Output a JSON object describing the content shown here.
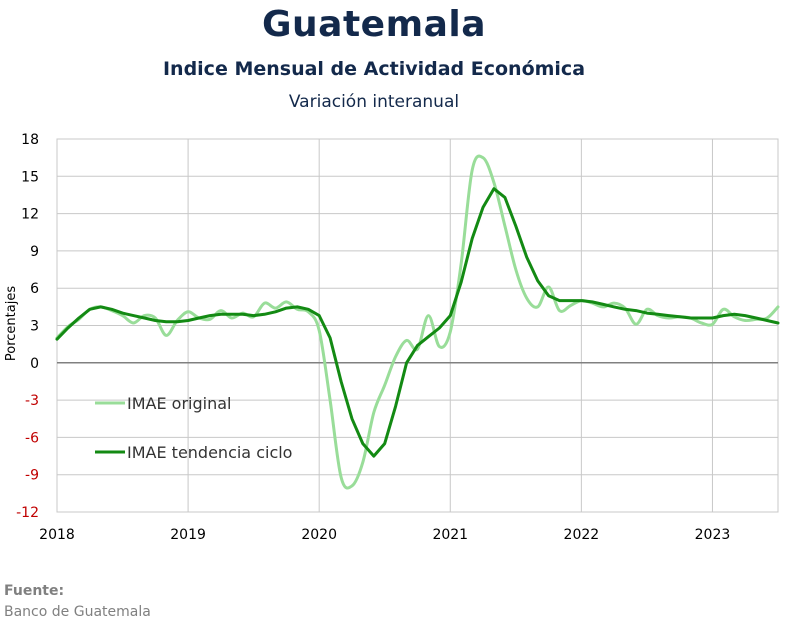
{
  "header": {
    "title": "Guatemala",
    "subtitle": "Indice Mensual de  Actividad Económica",
    "subtitle2": "Variación interanual"
  },
  "source": {
    "label": "Fuente:",
    "value": "Banco de Guatemala"
  },
  "colors": {
    "original": "#99dd99",
    "trend": "#138a13",
    "grid": "#c8c8c8",
    "zero_line": "#808080",
    "negative_tick": "#c00000",
    "text": "#000000"
  },
  "chart_data": {
    "type": "line",
    "ylabel": "Porcentajes",
    "ylim": [
      -12,
      18
    ],
    "yticks": [
      18,
      15,
      12,
      9,
      6,
      3,
      0,
      -3,
      -6,
      -9,
      -12
    ],
    "xlim": [
      2018,
      2023.5
    ],
    "xticks": [
      2018,
      2019,
      2020,
      2021,
      2022,
      2023
    ],
    "grid": true,
    "legend": "inside-bottom-left",
    "series": [
      {
        "name": "IMAE original",
        "x": [
          2018.0,
          2018.083,
          2018.167,
          2018.25,
          2018.333,
          2018.417,
          2018.5,
          2018.583,
          2018.667,
          2018.75,
          2018.833,
          2018.917,
          2019.0,
          2019.083,
          2019.167,
          2019.25,
          2019.333,
          2019.417,
          2019.5,
          2019.583,
          2019.667,
          2019.75,
          2019.833,
          2019.917,
          2020.0,
          2020.083,
          2020.167,
          2020.25,
          2020.333,
          2020.417,
          2020.5,
          2020.583,
          2020.667,
          2020.75,
          2020.833,
          2020.917,
          2021.0,
          2021.083,
          2021.167,
          2021.25,
          2021.333,
          2021.417,
          2021.5,
          2021.583,
          2021.667,
          2021.75,
          2021.833,
          2021.917,
          2022.0,
          2022.083,
          2022.167,
          2022.25,
          2022.333,
          2022.417,
          2022.5,
          2022.583,
          2022.667,
          2022.75,
          2022.833,
          2022.917,
          2023.0,
          2023.083,
          2023.167,
          2023.25,
          2023.333,
          2023.417,
          2023.5
        ],
        "values": [
          2.0,
          2.9,
          3.5,
          4.3,
          4.5,
          4.2,
          3.8,
          3.2,
          3.8,
          3.6,
          2.2,
          3.4,
          4.1,
          3.6,
          3.5,
          4.2,
          3.6,
          4.0,
          3.7,
          4.8,
          4.4,
          4.9,
          4.3,
          4.1,
          2.6,
          -3.0,
          -9.2,
          -9.9,
          -8.0,
          -4.0,
          -1.8,
          0.5,
          1.8,
          1.1,
          3.8,
          1.3,
          2.5,
          8.0,
          15.5,
          16.5,
          14.5,
          11.0,
          7.5,
          5.2,
          4.5,
          6.1,
          4.2,
          4.6,
          5.0,
          4.8,
          4.5,
          4.8,
          4.4,
          3.1,
          4.3,
          3.8,
          3.6,
          3.7,
          3.6,
          3.2,
          3.1,
          4.3,
          3.7,
          3.4,
          3.5,
          3.6,
          4.5
        ]
      },
      {
        "name": "IMAE tendencia ciclo",
        "x": [
          2018.0,
          2018.083,
          2018.167,
          2018.25,
          2018.333,
          2018.417,
          2018.5,
          2018.583,
          2018.667,
          2018.75,
          2018.833,
          2018.917,
          2019.0,
          2019.083,
          2019.167,
          2019.25,
          2019.333,
          2019.417,
          2019.5,
          2019.583,
          2019.667,
          2019.75,
          2019.833,
          2019.917,
          2020.0,
          2020.083,
          2020.167,
          2020.25,
          2020.333,
          2020.417,
          2020.5,
          2020.583,
          2020.667,
          2020.75,
          2020.833,
          2020.917,
          2021.0,
          2021.083,
          2021.167,
          2021.25,
          2021.333,
          2021.417,
          2021.5,
          2021.583,
          2021.667,
          2021.75,
          2021.833,
          2021.917,
          2022.0,
          2022.083,
          2022.167,
          2022.25,
          2022.333,
          2022.417,
          2022.5,
          2022.583,
          2022.667,
          2022.75,
          2022.833,
          2022.917,
          2023.0,
          2023.083,
          2023.167,
          2023.25,
          2023.333,
          2023.417,
          2023.5
        ],
        "values": [
          1.9,
          2.8,
          3.6,
          4.3,
          4.5,
          4.3,
          4.0,
          3.8,
          3.6,
          3.4,
          3.3,
          3.3,
          3.4,
          3.6,
          3.8,
          3.9,
          3.9,
          3.9,
          3.8,
          3.9,
          4.1,
          4.4,
          4.5,
          4.3,
          3.8,
          2.0,
          -1.5,
          -4.5,
          -6.5,
          -7.5,
          -6.5,
          -3.5,
          0.0,
          1.4,
          2.1,
          2.8,
          3.8,
          6.5,
          10.0,
          12.5,
          14.0,
          13.3,
          11.0,
          8.5,
          6.6,
          5.4,
          5.0,
          5.0,
          5.0,
          4.9,
          4.7,
          4.5,
          4.3,
          4.2,
          4.0,
          3.9,
          3.8,
          3.7,
          3.6,
          3.6,
          3.6,
          3.8,
          3.9,
          3.8,
          3.6,
          3.4,
          3.2
        ]
      }
    ]
  }
}
